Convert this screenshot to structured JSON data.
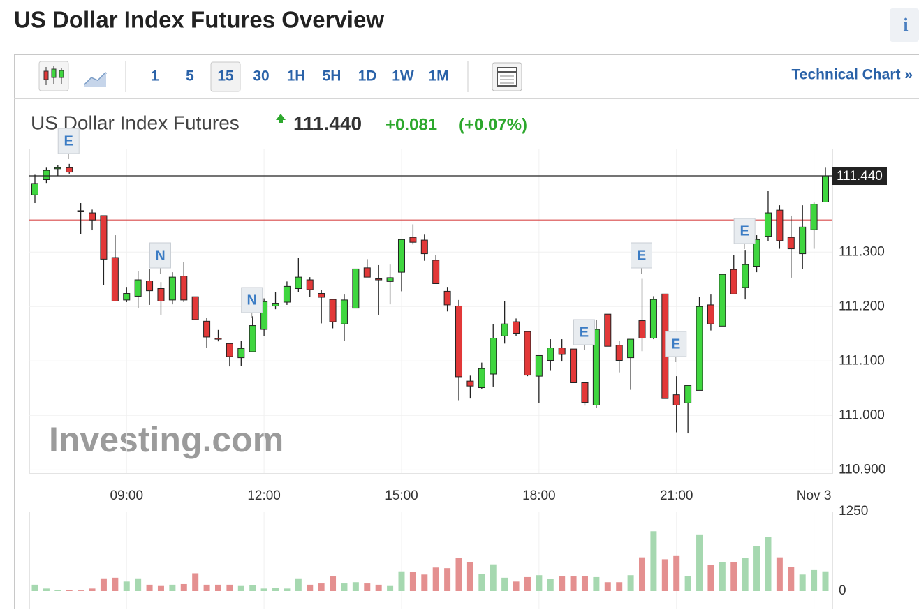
{
  "header": {
    "title": "US Dollar Index Futures Overview",
    "info": "i"
  },
  "toolbar": {
    "intervals": [
      "1",
      "5",
      "15",
      "30",
      "1H",
      "5H",
      "1D",
      "1W",
      "1M"
    ],
    "active": "15",
    "link": "Technical Chart »"
  },
  "chart_data": {
    "type": "candlestick",
    "instrument": "US Dollar Index Futures",
    "last": 111.44,
    "last_label": "111.440",
    "change": 0.081,
    "change_label": "+0.081",
    "change_pct": 0.07,
    "change_pct_label": "(+0.07%)",
    "reference_line": 111.359,
    "watermark": "Investing.com",
    "up_color": "#3fd63f",
    "down_color": "#e23838",
    "volume_up_color": "#a6d8b0",
    "volume_down_color": "#e49090",
    "categories": [
      null,
      null,
      null,
      null,
      null,
      null,
      null,
      null,
      "09:00",
      null,
      null,
      null,
      null,
      null,
      null,
      null,
      null,
      null,
      null,
      null,
      "12:00",
      null,
      null,
      null,
      null,
      null,
      null,
      null,
      null,
      null,
      null,
      null,
      "15:00",
      null,
      null,
      null,
      null,
      null,
      null,
      null,
      null,
      null,
      null,
      null,
      "18:00",
      null,
      null,
      null,
      null,
      null,
      null,
      null,
      null,
      null,
      null,
      null,
      "21:00",
      null,
      null,
      null,
      null,
      null,
      null,
      null,
      null,
      null,
      null,
      null,
      "Nov 3",
      null
    ],
    "open": [
      111.405,
      111.433,
      111.454,
      111.455,
      111.376,
      111.372,
      111.367,
      111.29,
      111.212,
      111.219,
      111.247,
      111.233,
      111.212,
      111.256,
      111.218,
      111.173,
      111.142,
      111.132,
      111.106,
      111.117,
      111.158,
      111.201,
      111.208,
      111.233,
      111.249,
      111.224,
      111.213,
      111.168,
      111.197,
      111.271,
      111.251,
      111.246,
      111.263,
      111.327,
      111.322,
      111.285,
      111.228,
      111.201,
      111.063,
      111.051,
      111.076,
      111.146,
      111.172,
      111.154,
      111.072,
      111.101,
      111.124,
      111.122,
      111.06,
      111.019,
      111.186,
      111.129,
      111.106,
      111.174,
      111.142,
      111.223,
      111.038,
      111.023,
      111.046,
      111.203,
      111.164,
      111.268,
      111.235,
      111.274,
      111.329,
      111.377,
      111.327,
      111.297,
      111.341,
      111.392
    ],
    "high": [
      111.442,
      111.455,
      111.46,
      111.462,
      111.39,
      111.378,
      111.367,
      111.331,
      111.236,
      111.265,
      111.269,
      111.245,
      111.263,
      111.282,
      111.218,
      111.179,
      111.157,
      111.132,
      111.137,
      111.182,
      111.215,
      111.226,
      111.246,
      111.29,
      111.254,
      111.231,
      111.213,
      111.222,
      111.269,
      111.287,
      111.276,
      111.277,
      111.323,
      111.351,
      111.332,
      111.294,
      111.236,
      111.212,
      111.073,
      111.097,
      111.167,
      111.21,
      111.178,
      111.154,
      111.11,
      111.14,
      111.14,
      111.122,
      111.06,
      111.176,
      111.186,
      111.137,
      111.14,
      111.251,
      111.219,
      111.223,
      111.072,
      111.055,
      111.218,
      111.222,
      111.259,
      111.294,
      111.304,
      111.331,
      111.413,
      111.386,
      111.367,
      111.386,
      111.391,
      111.455
    ],
    "low": [
      111.39,
      111.427,
      111.44,
      111.444,
      111.333,
      111.34,
      111.239,
      111.21,
      111.208,
      111.197,
      111.203,
      111.185,
      111.204,
      111.208,
      111.176,
      111.124,
      111.136,
      111.09,
      111.091,
      111.117,
      111.146,
      111.195,
      111.203,
      111.226,
      111.217,
      111.169,
      111.16,
      111.137,
      111.197,
      111.254,
      111.185,
      111.204,
      111.228,
      111.314,
      111.284,
      111.242,
      111.191,
      111.028,
      111.031,
      111.049,
      111.053,
      111.132,
      111.146,
      111.072,
      111.023,
      111.083,
      111.099,
      111.06,
      111.018,
      111.014,
      111.127,
      111.079,
      111.047,
      111.118,
      111.14,
      111.031,
      110.969,
      110.967,
      111.046,
      111.156,
      111.164,
      111.223,
      111.213,
      111.263,
      111.32,
      111.306,
      111.253,
      111.269,
      111.306,
      111.392
    ],
    "close": [
      111.426,
      111.45,
      111.455,
      111.447,
      111.374,
      111.359,
      111.287,
      111.21,
      111.224,
      111.249,
      111.229,
      111.21,
      111.254,
      111.212,
      111.176,
      111.144,
      111.14,
      111.108,
      111.123,
      111.165,
      111.209,
      111.206,
      111.237,
      111.254,
      111.231,
      111.217,
      111.172,
      111.212,
      111.269,
      111.254,
      111.249,
      111.253,
      111.323,
      111.318,
      111.297,
      111.242,
      111.203,
      111.071,
      111.054,
      111.086,
      111.142,
      111.168,
      111.151,
      111.074,
      111.11,
      111.124,
      111.112,
      111.06,
      111.024,
      111.158,
      111.127,
      111.101,
      111.14,
      111.142,
      111.213,
      111.031,
      111.019,
      111.055,
      111.2,
      111.168,
      111.259,
      111.223,
      111.277,
      111.323,
      111.372,
      111.321,
      111.306,
      111.346,
      111.388,
      111.44
    ],
    "volume": [
      100,
      40,
      20,
      20,
      10,
      40,
      200,
      210,
      150,
      200,
      100,
      80,
      100,
      110,
      280,
      100,
      100,
      100,
      80,
      90,
      40,
      50,
      40,
      200,
      100,
      120,
      230,
      120,
      140,
      120,
      100,
      80,
      310,
      300,
      260,
      370,
      360,
      520,
      460,
      270,
      420,
      210,
      150,
      220,
      250,
      190,
      230,
      230,
      240,
      220,
      140,
      140,
      250,
      530,
      940,
      500,
      550,
      240,
      890,
      410,
      460,
      460,
      520,
      710,
      850,
      530,
      380,
      260,
      330,
      310
    ],
    "ylim": [
      110.894,
      111.49
    ],
    "yticks": [
      {
        "value": 110.9,
        "label": "110.900"
      },
      {
        "value": 111.0,
        "label": "111.000"
      },
      {
        "value": 111.1,
        "label": "111.100"
      },
      {
        "value": 111.2,
        "label": "111.200"
      },
      {
        "value": 111.3,
        "label": "111.300"
      }
    ],
    "volume_ylim": [
      0,
      1250
    ],
    "volume_yticks": [
      0,
      1250
    ],
    "events": [
      "E",
      "N",
      "N",
      "E",
      "E",
      "E",
      "E"
    ],
    "grid": true
  }
}
